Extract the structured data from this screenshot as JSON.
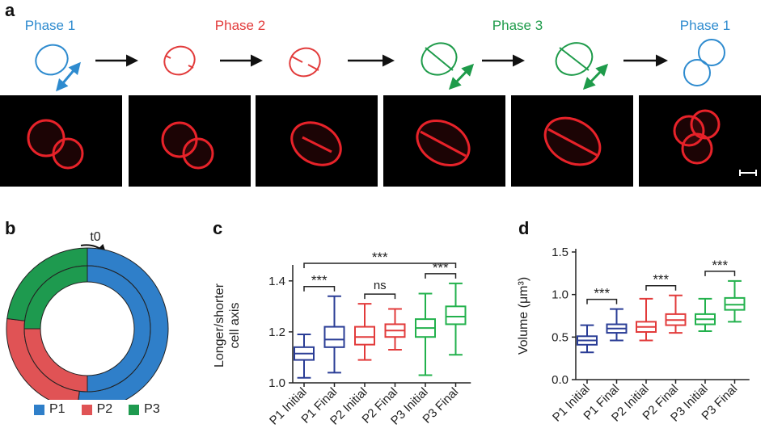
{
  "panel_a": {
    "letter": "a",
    "phases": [
      {
        "label": "Phase 1",
        "color": "#2e8bcf"
      },
      {
        "label": "Phase 2",
        "color": "#e23b3b"
      },
      {
        "label": "Phase 3",
        "color": "#1e9b4a"
      },
      {
        "label": "Phase 1",
        "color": "#2e8bcf"
      }
    ]
  },
  "panel_b": {
    "letter": "b",
    "annotation": "t0",
    "legend": [
      {
        "label": "P1",
        "color": "#2f7fc9"
      },
      {
        "label": "P2",
        "color": "#e05355"
      },
      {
        "label": "P3",
        "color": "#1e9a4f"
      }
    ]
  },
  "panel_c": {
    "letter": "c",
    "significance": [
      {
        "label": "***",
        "from": 0,
        "to": 5
      },
      {
        "label": "***",
        "from": 0,
        "to": 1
      },
      {
        "label": "ns",
        "from": 2,
        "to": 3
      },
      {
        "label": "***",
        "from": 4,
        "to": 5
      }
    ]
  },
  "panel_d": {
    "letter": "d",
    "significance": [
      {
        "label": "***",
        "from": 0,
        "to": 1
      },
      {
        "label": "***",
        "from": 2,
        "to": 3
      },
      {
        "label": "***",
        "from": 4,
        "to": 5
      }
    ]
  },
  "chart_data": [
    {
      "type": "pie",
      "subtype": "nested-donut",
      "rings": [
        {
          "ring": "outer",
          "labels": [
            "P1",
            "P2",
            "P3"
          ],
          "values": [
            0.52,
            0.25,
            0.23
          ]
        },
        {
          "ring": "inner",
          "labels": [
            "P1",
            "P2",
            "P3"
          ],
          "values": [
            0.5,
            0.25,
            0.25
          ]
        }
      ],
      "colors": [
        "#2f7fc9",
        "#e05355",
        "#1e9a4f"
      ],
      "annotation": "t0",
      "legend_position": "bottom"
    },
    {
      "type": "boxplot",
      "categories": [
        "P1 Initial",
        "P1 Final",
        "P2 Initial",
        "P2 Final",
        "P3 Initial",
        "P3 Final"
      ],
      "colors": [
        "#2a3d96",
        "#2a3d96",
        "#e23b3b",
        "#e23b3b",
        "#22b14c",
        "#22b14c"
      ],
      "boxes": [
        {
          "min": 1.02,
          "q1": 1.09,
          "median": 1.115,
          "q3": 1.14,
          "max": 1.19
        },
        {
          "min": 1.04,
          "q1": 1.14,
          "median": 1.17,
          "q3": 1.22,
          "max": 1.34
        },
        {
          "min": 1.09,
          "q1": 1.15,
          "median": 1.18,
          "q3": 1.22,
          "max": 1.31
        },
        {
          "min": 1.13,
          "q1": 1.18,
          "median": 1.205,
          "q3": 1.23,
          "max": 1.29
        },
        {
          "min": 1.03,
          "q1": 1.18,
          "median": 1.215,
          "q3": 1.25,
          "max": 1.35
        },
        {
          "min": 1.11,
          "q1": 1.23,
          "median": 1.26,
          "q3": 1.3,
          "max": 1.39
        }
      ],
      "ylabel": "Longer/shorter cell axis",
      "ylabel_lines": [
        "Longer/shorter",
        "cell axis"
      ],
      "ylim": [
        1.0,
        1.45
      ],
      "yticks": [
        "1.0",
        "1.2",
        "1.4"
      ],
      "ytick_values": [
        1.0,
        1.2,
        1.4
      ],
      "annotations": [
        "***",
        "***",
        "ns",
        "***"
      ]
    },
    {
      "type": "boxplot",
      "categories": [
        "P1 Initial",
        "P1 Final",
        "P2 Initial",
        "P2 Final",
        "P3 Initial",
        "P3 Final"
      ],
      "colors": [
        "#2a3d96",
        "#2a3d96",
        "#e23b3b",
        "#e23b3b",
        "#22b14c",
        "#22b14c"
      ],
      "boxes": [
        {
          "min": 0.32,
          "q1": 0.41,
          "median": 0.46,
          "q3": 0.51,
          "max": 0.64
        },
        {
          "min": 0.46,
          "q1": 0.55,
          "median": 0.6,
          "q3": 0.65,
          "max": 0.83
        },
        {
          "min": 0.46,
          "q1": 0.56,
          "median": 0.62,
          "q3": 0.68,
          "max": 0.95
        },
        {
          "min": 0.55,
          "q1": 0.64,
          "median": 0.7,
          "q3": 0.77,
          "max": 0.99
        },
        {
          "min": 0.57,
          "q1": 0.65,
          "median": 0.71,
          "q3": 0.77,
          "max": 0.95
        },
        {
          "min": 0.68,
          "q1": 0.82,
          "median": 0.88,
          "q3": 0.96,
          "max": 1.16
        }
      ],
      "ylabel": "Volume (μm³)",
      "ylim": [
        0.0,
        1.5
      ],
      "yticks": [
        "0.0",
        "0.5",
        "1.0",
        "1.5"
      ],
      "ytick_values": [
        0.0,
        0.5,
        1.0,
        1.5
      ],
      "annotations": [
        "***",
        "***",
        "***"
      ]
    }
  ]
}
